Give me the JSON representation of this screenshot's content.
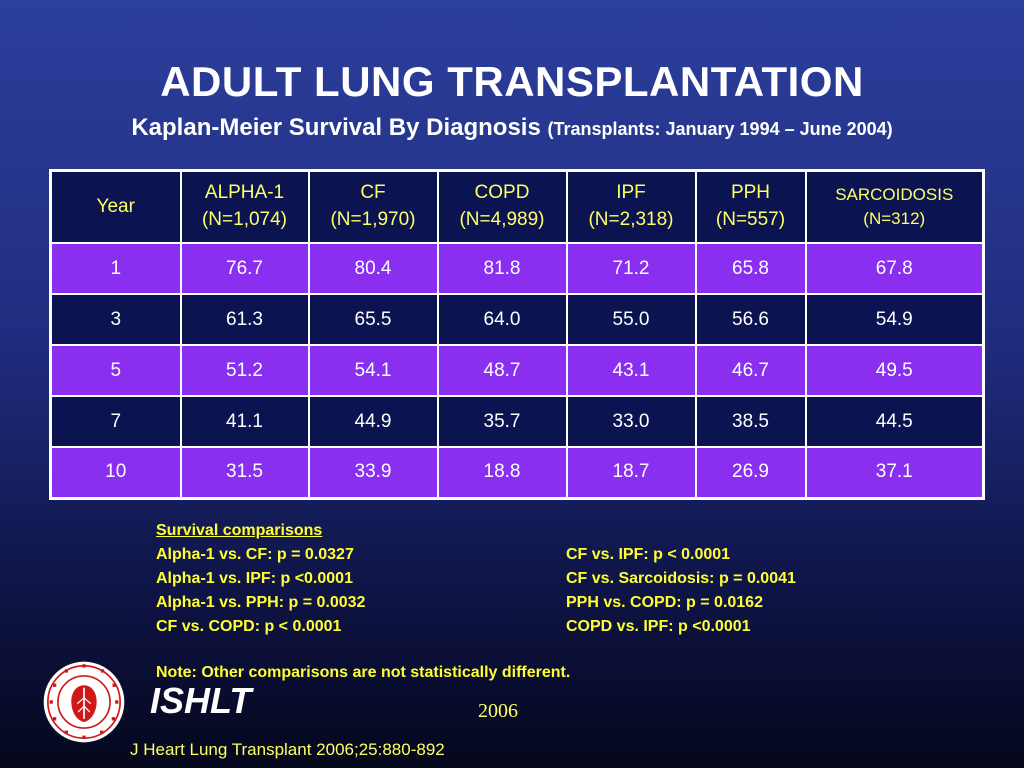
{
  "header": {
    "title": "ADULT LUNG TRANSPLANTATION",
    "subtitle_main": "Kaplan-Meier Survival By Diagnosis",
    "subtitle_range": "(Transplants: January 1994 – June 2004)"
  },
  "chart_data": {
    "type": "table",
    "columns": [
      {
        "line1": "Year",
        "line2": ""
      },
      {
        "line1": "ALPHA-1",
        "line2": "(N=1,074)"
      },
      {
        "line1": "CF",
        "line2": "(N=1,970)"
      },
      {
        "line1": "COPD",
        "line2": "(N=4,989)"
      },
      {
        "line1": "IPF",
        "line2": "(N=2,318)"
      },
      {
        "line1": "PPH",
        "line2": "(N=557)"
      },
      {
        "line1": "SARCOIDOSIS",
        "line2": "(N=312)"
      }
    ],
    "rows": [
      [
        "1",
        "76.7",
        "80.4",
        "81.8",
        "71.2",
        "65.8",
        "67.8"
      ],
      [
        "3",
        "61.3",
        "65.5",
        "64.0",
        "55.0",
        "56.6",
        "54.9"
      ],
      [
        "5",
        "51.2",
        "54.1",
        "48.7",
        "43.1",
        "46.7",
        "49.5"
      ],
      [
        "7",
        "41.1",
        "44.9",
        "35.7",
        "33.0",
        "38.5",
        "44.5"
      ],
      [
        "10",
        "31.5",
        "33.9",
        "18.8",
        "18.7",
        "26.9",
        "37.1"
      ]
    ]
  },
  "comparisons": {
    "heading": "Survival comparisons",
    "left": [
      "Alpha-1 vs. CF:  p = 0.0327",
      "Alpha-1 vs. IPF: p <0.0001",
      "Alpha-1 vs. PPH: p = 0.0032",
      "CF vs. COPD: p < 0.0001"
    ],
    "right": [
      "CF vs. IPF: p < 0.0001",
      "CF vs. Sarcoidosis: p = 0.0041",
      "PPH vs. COPD: p = 0.0162",
      "COPD vs. IPF: p <0.0001"
    ],
    "note": "Note: Other comparisons are not statistically different."
  },
  "footer": {
    "brand": "ISHLT",
    "year": "2006",
    "citation": "J Heart Lung Transplant 2006;25:880-892",
    "logo_icon": "ishlt-seal-icon",
    "colors": {
      "accent_yellow": "#ffff66",
      "row_purple": "#8a2ef0",
      "row_navy": "#0b1450"
    }
  }
}
